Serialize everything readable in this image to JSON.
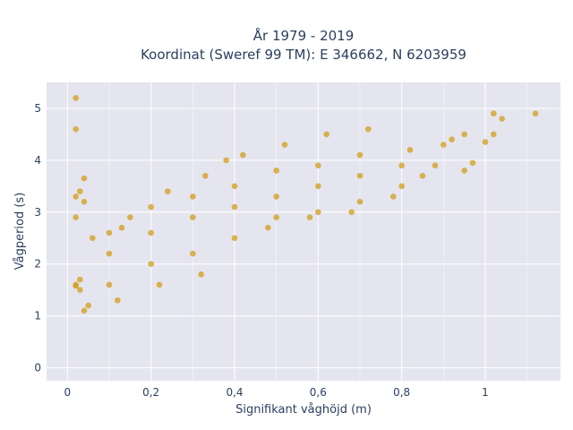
{
  "chart_data": {
    "type": "scatter",
    "title_lines": [
      "År 1979 - 2019",
      "Koordinat (Sweref 99 TM): E 346662, N 6203959"
    ],
    "xlabel": "Signifikant våghöjd (m)",
    "ylabel": "Vågperiod (s)",
    "xlim": [
      -0.05,
      1.18
    ],
    "ylim": [
      -0.25,
      5.5
    ],
    "x_ticks": [
      0,
      0.2,
      0.4,
      0.6,
      0.8,
      1
    ],
    "x_tick_labels": [
      "0",
      "0,2",
      "0,4",
      "0,6",
      "0,8",
      "1"
    ],
    "y_ticks": [
      0,
      1,
      2,
      3,
      4,
      5
    ],
    "y_tick_labels": [
      "0",
      "1",
      "2",
      "3",
      "4",
      "5"
    ],
    "grid": true,
    "colors": {
      "marker": "#d4a020",
      "plot_bg": "#e5e5ef",
      "grid": "#ffffff"
    },
    "series": [
      {
        "values": [
          [
            0.02,
            5.2
          ],
          [
            0.02,
            4.6
          ],
          [
            0.04,
            3.65
          ],
          [
            0.03,
            3.4
          ],
          [
            0.02,
            3.3
          ],
          [
            0.04,
            3.2
          ],
          [
            0.02,
            2.9
          ],
          [
            0.06,
            2.5
          ],
          [
            0.02,
            1.6
          ],
          [
            0.03,
            1.5
          ],
          [
            0.05,
            1.2
          ],
          [
            0.04,
            1.1
          ],
          [
            0.02,
            1.58
          ],
          [
            0.03,
            1.7
          ],
          [
            0.1,
            1.6
          ],
          [
            0.1,
            2.2
          ],
          [
            0.1,
            2.6
          ],
          [
            0.12,
            1.3
          ],
          [
            0.13,
            2.7
          ],
          [
            0.15,
            2.9
          ],
          [
            0.2,
            2.0
          ],
          [
            0.2,
            2.6
          ],
          [
            0.2,
            3.1
          ],
          [
            0.22,
            1.6
          ],
          [
            0.24,
            3.4
          ],
          [
            0.3,
            2.2
          ],
          [
            0.3,
            2.9
          ],
          [
            0.3,
            3.3
          ],
          [
            0.32,
            1.8
          ],
          [
            0.33,
            3.7
          ],
          [
            0.4,
            2.5
          ],
          [
            0.4,
            3.1
          ],
          [
            0.4,
            3.5
          ],
          [
            0.42,
            4.1
          ],
          [
            0.38,
            4.0
          ],
          [
            0.5,
            2.9
          ],
          [
            0.5,
            3.3
          ],
          [
            0.5,
            3.8
          ],
          [
            0.52,
            4.3
          ],
          [
            0.48,
            2.7
          ],
          [
            0.6,
            3.0
          ],
          [
            0.6,
            3.5
          ],
          [
            0.6,
            3.9
          ],
          [
            0.62,
            4.5
          ],
          [
            0.58,
            2.9
          ],
          [
            0.7,
            3.2
          ],
          [
            0.7,
            3.7
          ],
          [
            0.7,
            4.1
          ],
          [
            0.72,
            4.6
          ],
          [
            0.68,
            3.0
          ],
          [
            0.8,
            3.5
          ],
          [
            0.8,
            3.9
          ],
          [
            0.82,
            4.2
          ],
          [
            0.78,
            3.3
          ],
          [
            0.85,
            3.7
          ],
          [
            0.88,
            3.9
          ],
          [
            0.9,
            4.3
          ],
          [
            0.92,
            4.4
          ],
          [
            0.95,
            4.5
          ],
          [
            0.95,
            3.8
          ],
          [
            0.97,
            3.95
          ],
          [
            1.0,
            4.35
          ],
          [
            1.02,
            4.5
          ],
          [
            1.02,
            4.9
          ],
          [
            1.04,
            4.8
          ],
          [
            1.12,
            4.9
          ]
        ]
      }
    ]
  }
}
